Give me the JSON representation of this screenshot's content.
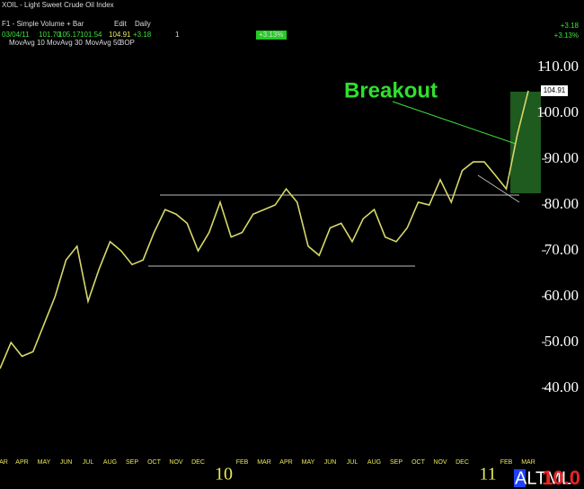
{
  "chart_data": {
    "type": "line",
    "title": "XOIL - Light Sweet Crude Oil Index",
    "header": {
      "template": "F1 - Simple Volume + Bar",
      "edit": "Edit",
      "period": "Daily",
      "date": "03/04/11",
      "open": "101.70",
      "high": "105.17",
      "low": "101.54",
      "close": "104.91",
      "change": "+3.18",
      "change_pct": "+3.13%",
      "count": "1"
    },
    "indicators": [
      "MovAvg 10",
      "MovAvg 30",
      "MovAvg 50",
      "BOP"
    ],
    "annotation": "Breakout",
    "footer": {
      "alert": "ALTML",
      "scale": "10.0"
    },
    "categories": [
      "AR",
      null,
      "APR",
      null,
      "MAY",
      null,
      "JUN",
      null,
      "JUL",
      null,
      "AUG",
      null,
      "SEP",
      null,
      "OCT",
      null,
      "NOV",
      null,
      "DEC",
      null,
      null,
      null,
      "FEB",
      null,
      "MAR",
      null,
      "APR",
      null,
      "MAY",
      null,
      "JUN",
      null,
      "JUL",
      null,
      "AUG",
      null,
      "SEP",
      null,
      "OCT",
      null,
      "NOV",
      null,
      "DEC",
      null,
      null,
      null,
      "FEB",
      null,
      "MAR"
    ],
    "year_labels": [
      "10",
      "11"
    ],
    "series": [
      {
        "name": "XOIL",
        "color": "#d8d86a",
        "values": [
          44.3,
          50,
          47,
          48,
          54,
          60,
          68,
          71,
          59,
          66,
          72,
          70,
          67,
          68,
          74,
          79,
          78,
          76,
          70,
          74,
          80.6,
          73,
          74,
          78,
          79,
          80,
          83.5,
          80.6,
          71,
          69,
          75,
          76,
          72,
          77,
          79,
          73,
          72,
          75,
          80.6,
          80,
          85.5,
          80.6,
          87.5,
          89.4,
          89.4,
          86.5,
          83.5,
          95.3,
          104.91
        ]
      }
    ],
    "ylim": [
      25.7,
      124.7
    ],
    "yticks": [
      {
        "value": 110,
        "label": "110.00"
      },
      {
        "value": 100,
        "label": "100.00"
      },
      {
        "value": 90,
        "label": "90.00"
      },
      {
        "value": 80,
        "label": "80.00"
      },
      {
        "value": 70,
        "label": "70.00"
      },
      {
        "value": 60,
        "label": "60.00"
      },
      {
        "value": 50,
        "label": "50.00"
      },
      {
        "value": 40,
        "label": "40.00"
      }
    ]
  }
}
